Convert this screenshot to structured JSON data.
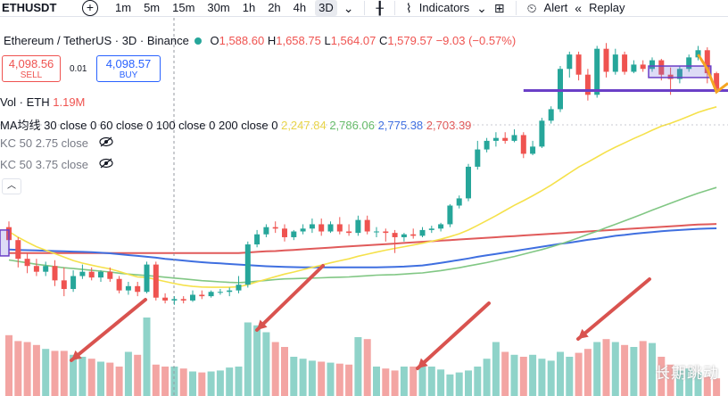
{
  "toolbar": {
    "symbol": "ETHUSDT",
    "timeframes": [
      "1m",
      "5m",
      "15m",
      "30m",
      "1h",
      "2h",
      "4h",
      "3D"
    ],
    "active_timeframe": "3D",
    "indicators_label": "Indicators",
    "alert_label": "Alert",
    "replay_label": "Replay"
  },
  "legend": {
    "pair_name": "Ethereum / TetherUS · 3D · Binance",
    "o_label": "O",
    "o_value": "1,588.60",
    "h_label": "H",
    "h_value": "1,658.75",
    "l_label": "L",
    "l_value": "1,564.07",
    "c_label": "C",
    "c_value": "1,579.57",
    "change": "−9.03 (−0.57%)",
    "vol_label": "Vol · ETH",
    "vol_value": "1.19M",
    "ma_label": "MA均线 30 close 0 60 close 0 100 close 0 200 close 0",
    "ma_values": [
      "2,247.84",
      "2,786.06",
      "2,775.38",
      "2,703.39"
    ],
    "kc1": "KC 50 2.75 close",
    "kc2": "KC 50 3.75 close"
  },
  "trade": {
    "sell_price": "4,098.56",
    "sell_label": "SELL",
    "spread": "0.01",
    "buy_price": "4,098.57",
    "buy_label": "BUY"
  },
  "watermark": "长期跳动",
  "colors": {
    "up": "#26a69a",
    "down": "#ef5350",
    "ma30": "#f5e14b",
    "ma60": "#81c784",
    "ma100": "#3f6fe0",
    "ma200": "#e05a5a",
    "level": "#6a3fc7"
  },
  "chart_data": {
    "type": "candlestick",
    "candles": [
      {
        "o": 1780,
        "h": 1800,
        "c": 1735,
        "l": 1700
      },
      {
        "o": 1735,
        "h": 1745,
        "c": 1670,
        "l": 1640
      },
      {
        "o": 1670,
        "h": 1690,
        "c": 1645,
        "l": 1620
      },
      {
        "o": 1645,
        "h": 1670,
        "c": 1625,
        "l": 1610
      },
      {
        "o": 1625,
        "h": 1660,
        "c": 1645,
        "l": 1610
      },
      {
        "o": 1645,
        "h": 1665,
        "c": 1595,
        "l": 1575
      },
      {
        "o": 1595,
        "h": 1640,
        "c": 1565,
        "l": 1540
      },
      {
        "o": 1565,
        "h": 1630,
        "c": 1610,
        "l": 1555
      },
      {
        "o": 1610,
        "h": 1650,
        "c": 1625,
        "l": 1600
      },
      {
        "o": 1625,
        "h": 1640,
        "c": 1605,
        "l": 1595
      },
      {
        "o": 1605,
        "h": 1630,
        "c": 1625,
        "l": 1590
      },
      {
        "o": 1625,
        "h": 1640,
        "c": 1600,
        "l": 1590
      },
      {
        "o": 1600,
        "h": 1610,
        "c": 1560,
        "l": 1550
      },
      {
        "o": 1560,
        "h": 1590,
        "c": 1575,
        "l": 1545
      },
      {
        "o": 1575,
        "h": 1590,
        "c": 1555,
        "l": 1540
      },
      {
        "o": 1555,
        "h": 1660,
        "c": 1650,
        "l": 1550
      },
      {
        "o": 1650,
        "h": 1660,
        "c": 1535,
        "l": 1525
      },
      {
        "o": 1535,
        "h": 1550,
        "c": 1525,
        "l": 1515
      },
      {
        "o": 1525,
        "h": 1540,
        "c": 1530,
        "l": 1510
      },
      {
        "o": 1530,
        "h": 1540,
        "c": 1525,
        "l": 1515
      },
      {
        "o": 1525,
        "h": 1560,
        "c": 1545,
        "l": 1520
      },
      {
        "o": 1545,
        "h": 1560,
        "c": 1540,
        "l": 1530
      },
      {
        "o": 1540,
        "h": 1560,
        "c": 1555,
        "l": 1535
      },
      {
        "o": 1555,
        "h": 1565,
        "c": 1555,
        "l": 1545
      },
      {
        "o": 1555,
        "h": 1570,
        "c": 1560,
        "l": 1540
      },
      {
        "o": 1560,
        "h": 1610,
        "c": 1580,
        "l": 1550
      },
      {
        "o": 1580,
        "h": 1730,
        "c": 1720,
        "l": 1570
      },
      {
        "o": 1720,
        "h": 1770,
        "c": 1755,
        "l": 1710
      },
      {
        "o": 1755,
        "h": 1790,
        "c": 1780,
        "l": 1745
      },
      {
        "o": 1780,
        "h": 1800,
        "c": 1775,
        "l": 1760
      },
      {
        "o": 1775,
        "h": 1790,
        "c": 1745,
        "l": 1730
      },
      {
        "o": 1745,
        "h": 1770,
        "c": 1765,
        "l": 1735
      },
      {
        "o": 1765,
        "h": 1790,
        "c": 1775,
        "l": 1755
      },
      {
        "o": 1775,
        "h": 1810,
        "c": 1790,
        "l": 1760
      },
      {
        "o": 1790,
        "h": 1810,
        "c": 1765,
        "l": 1750
      },
      {
        "o": 1765,
        "h": 1800,
        "c": 1790,
        "l": 1760
      },
      {
        "o": 1790,
        "h": 1815,
        "c": 1765,
        "l": 1755
      },
      {
        "o": 1765,
        "h": 1790,
        "c": 1760,
        "l": 1750
      },
      {
        "o": 1760,
        "h": 1820,
        "c": 1805,
        "l": 1750
      },
      {
        "o": 1805,
        "h": 1820,
        "c": 1765,
        "l": 1755
      },
      {
        "o": 1765,
        "h": 1780,
        "c": 1765,
        "l": 1745
      },
      {
        "o": 1765,
        "h": 1775,
        "c": 1760,
        "l": 1730
      },
      {
        "o": 1760,
        "h": 1770,
        "c": 1745,
        "l": 1690
      },
      {
        "o": 1745,
        "h": 1760,
        "c": 1755,
        "l": 1730
      },
      {
        "o": 1755,
        "h": 1775,
        "c": 1750,
        "l": 1740
      },
      {
        "o": 1750,
        "h": 1780,
        "c": 1770,
        "l": 1745
      },
      {
        "o": 1770,
        "h": 1785,
        "c": 1775,
        "l": 1760
      },
      {
        "o": 1775,
        "h": 1795,
        "c": 1790,
        "l": 1765
      },
      {
        "o": 1790,
        "h": 1860,
        "c": 1855,
        "l": 1780
      },
      {
        "o": 1855,
        "h": 1890,
        "c": 1880,
        "l": 1845
      },
      {
        "o": 1880,
        "h": 2000,
        "c": 1990,
        "l": 1870
      },
      {
        "o": 1990,
        "h": 2080,
        "c": 2050,
        "l": 1980
      },
      {
        "o": 2050,
        "h": 2090,
        "c": 2080,
        "l": 2040
      },
      {
        "o": 2080,
        "h": 2110,
        "c": 2090,
        "l": 2060
      },
      {
        "o": 2090,
        "h": 2110,
        "c": 2080,
        "l": 2070
      },
      {
        "o": 2080,
        "h": 2120,
        "c": 2100,
        "l": 2075
      },
      {
        "o": 2100,
        "h": 2110,
        "c": 2035,
        "l": 2020
      },
      {
        "o": 2035,
        "h": 2080,
        "c": 2060,
        "l": 2030
      },
      {
        "o": 2060,
        "h": 2160,
        "c": 2150,
        "l": 2055
      },
      {
        "o": 2150,
        "h": 2200,
        "c": 2190,
        "l": 2140
      },
      {
        "o": 2190,
        "h": 2340,
        "c": 2330,
        "l": 2180
      },
      {
        "o": 2330,
        "h": 2390,
        "c": 2380,
        "l": 2300
      },
      {
        "o": 2380,
        "h": 2390,
        "c": 2310,
        "l": 2290
      },
      {
        "o": 2310,
        "h": 2330,
        "c": 2240,
        "l": 2220
      },
      {
        "o": 2240,
        "h": 2410,
        "c": 2400,
        "l": 2230
      },
      {
        "o": 2400,
        "h": 2420,
        "c": 2320,
        "l": 2300
      },
      {
        "o": 2320,
        "h": 2400,
        "c": 2380,
        "l": 2310
      },
      {
        "o": 2380,
        "h": 2390,
        "c": 2320,
        "l": 2310
      },
      {
        "o": 2320,
        "h": 2360,
        "c": 2345,
        "l": 2315
      },
      {
        "o": 2345,
        "h": 2360,
        "c": 2330,
        "l": 2320
      },
      {
        "o": 2330,
        "h": 2370,
        "c": 2360,
        "l": 2320
      },
      {
        "o": 2360,
        "h": 2365,
        "c": 2310,
        "l": 2290
      },
      {
        "o": 2310,
        "h": 2335,
        "c": 2295,
        "l": 2240
      },
      {
        "o": 2295,
        "h": 2340,
        "c": 2330,
        "l": 2280
      },
      {
        "o": 2330,
        "h": 2380,
        "c": 2370,
        "l": 2320
      },
      {
        "o": 2370,
        "h": 2410,
        "c": 2395,
        "l": 2360
      },
      {
        "o": 2395,
        "h": 2405,
        "c": 2315,
        "l": 2280
      },
      {
        "o": 2315,
        "h": 2320,
        "c": 2260,
        "l": 2250
      }
    ],
    "volume": [
      62,
      56,
      55,
      52,
      48,
      46,
      46,
      42,
      40,
      38,
      35,
      34,
      30,
      45,
      42,
      80,
      32,
      30,
      30,
      28,
      25,
      24,
      25,
      26,
      29,
      30,
      75,
      72,
      65,
      55,
      50,
      40,
      38,
      36,
      35,
      34,
      33,
      32,
      60,
      58,
      30,
      28,
      26,
      30,
      30,
      32,
      30,
      27,
      22,
      24,
      26,
      30,
      38,
      55,
      45,
      42,
      40,
      42,
      38,
      36,
      45,
      40,
      44,
      48,
      55,
      58,
      55,
      52,
      50,
      56,
      54,
      40,
      32,
      26,
      28,
      24,
      20,
      18
    ],
    "ma30": [
      1765,
      1745,
      1728,
      1712,
      1700,
      1688,
      1676,
      1664,
      1655,
      1648,
      1641,
      1635,
      1626,
      1616,
      1607,
      1605,
      1598,
      1591,
      1584,
      1578,
      1574,
      1572,
      1571,
      1571,
      1571,
      1573,
      1580,
      1590,
      1599,
      1608,
      1617,
      1624,
      1632,
      1640,
      1648,
      1656,
      1663,
      1670,
      1679,
      1686,
      1693,
      1700,
      1706,
      1712,
      1718,
      1724,
      1731,
      1738,
      1747,
      1757,
      1770,
      1786,
      1803,
      1820,
      1838,
      1856,
      1872,
      1889,
      1907,
      1926,
      1947,
      1968,
      1989,
      2006,
      2024,
      2042,
      2058,
      2073,
      2088,
      2102,
      2117,
      2131,
      2141,
      2153,
      2166,
      2179,
      2189,
      2198
    ],
    "ma60": [
      1666,
      1661,
      1656,
      1651,
      1647,
      1643,
      1639,
      1636,
      1633,
      1630,
      1627,
      1624,
      1620,
      1617,
      1614,
      1612,
      1609,
      1606,
      1603,
      1600,
      1597,
      1594,
      1592,
      1590,
      1588,
      1587,
      1589,
      1592,
      1595,
      1598,
      1600,
      1601,
      1602,
      1603,
      1604,
      1605,
      1606,
      1607,
      1609,
      1611,
      1613,
      1614,
      1615,
      1617,
      1619,
      1621,
      1625,
      1629,
      1634,
      1639,
      1645,
      1651,
      1657,
      1664,
      1671,
      1678,
      1686,
      1694,
      1702,
      1711,
      1721,
      1732,
      1743,
      1755,
      1766,
      1778,
      1790,
      1802,
      1814,
      1826,
      1839,
      1851,
      1863,
      1875,
      1887,
      1898,
      1908,
      1918
    ],
    "ma100": [
      1702,
      1701,
      1700,
      1699,
      1698,
      1697,
      1696,
      1695,
      1694,
      1693,
      1691,
      1689,
      1686,
      1683,
      1680,
      1677,
      1674,
      1670,
      1667,
      1664,
      1661,
      1658,
      1656,
      1654,
      1652,
      1650,
      1648,
      1646,
      1644,
      1643,
      1642,
      1641,
      1640,
      1640,
      1640,
      1640,
      1640,
      1640,
      1640,
      1640,
      1640,
      1641,
      1642,
      1643,
      1645,
      1647,
      1651,
      1656,
      1661,
      1666,
      1671,
      1677,
      1682,
      1687,
      1692,
      1697,
      1702,
      1707,
      1712,
      1717,
      1722,
      1726,
      1731,
      1736,
      1740,
      1745,
      1750,
      1753,
      1757,
      1760,
      1763,
      1766,
      1768,
      1770,
      1772,
      1774,
      1775,
      1776
    ],
    "ma200": [
      1690,
      1690,
      1690,
      1690,
      1690,
      1690,
      1690,
      1690,
      1690,
      1690,
      1690,
      1690,
      1690,
      1690,
      1690,
      1690,
      1690,
      1690,
      1690,
      1690,
      1690,
      1690,
      1690,
      1690,
      1690,
      1690,
      1692,
      1694,
      1696,
      1697,
      1699,
      1701,
      1703,
      1705,
      1707,
      1709,
      1711,
      1713,
      1715,
      1717,
      1719,
      1721,
      1723,
      1725,
      1727,
      1729,
      1731,
      1733,
      1735,
      1737,
      1739,
      1741,
      1743,
      1745,
      1747,
      1749,
      1751,
      1753,
      1755,
      1757,
      1759,
      1761,
      1763,
      1765,
      1767,
      1769,
      1771,
      1773,
      1775,
      1777,
      1779,
      1781,
      1783,
      1785,
      1787,
      1789,
      1790,
      1791
    ],
    "support_level": 2255,
    "range_box": {
      "from_index": 70,
      "to_index": 76,
      "high": 2340,
      "low": 2300
    }
  }
}
